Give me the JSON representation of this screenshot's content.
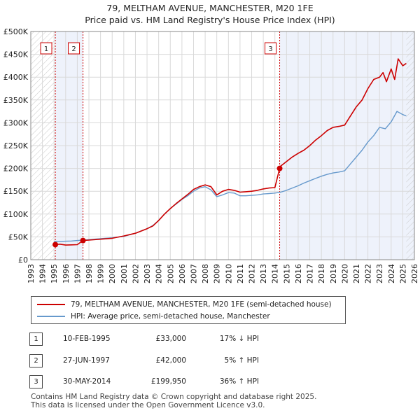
{
  "header": {
    "title_line1": "79, MELTHAM AVENUE, MANCHESTER, M20 1FE",
    "title_line2": "Price paid vs. HM Land Registry's House Price Index (HPI)"
  },
  "legend": {
    "property_label": "79, MELTHAM AVENUE, MANCHESTER, M20 1FE (semi-detached house)",
    "hpi_label": "HPI: Average price, semi-detached house, Manchester"
  },
  "sales": [
    {
      "num": "1",
      "date": "10-FEB-1995",
      "price": "£33,000",
      "hpi_change": "17% ↓ HPI"
    },
    {
      "num": "2",
      "date": "27-JUN-1997",
      "price": "£42,000",
      "hpi_change": "5% ↑ HPI"
    },
    {
      "num": "3",
      "date": "30-MAY-2014",
      "price": "£199,950",
      "hpi_change": "36% ↑ HPI"
    }
  ],
  "footer": {
    "line1": "Contains HM Land Registry data © Crown copyright and database right 2025.",
    "line2": "This data is licensed under the Open Government Licence v3.0."
  },
  "colors": {
    "property_line": "#cc0000",
    "hpi_line": "#6699cc",
    "shade": "#eef2fb",
    "grid": "#d9d9d9"
  },
  "chart_data": {
    "type": "line",
    "title": "Price paid vs. HM Land Registry's House Price Index (HPI)",
    "xlim": [
      1993,
      2026
    ],
    "ylim": [
      0,
      500000
    ],
    "x_ticks": [
      1993,
      1994,
      1995,
      1996,
      1997,
      1998,
      1999,
      2000,
      2001,
      2002,
      2003,
      2004,
      2005,
      2006,
      2007,
      2008,
      2009,
      2010,
      2011,
      2012,
      2013,
      2014,
      2015,
      2016,
      2017,
      2018,
      2019,
      2020,
      2021,
      2022,
      2023,
      2024,
      2025,
      2026
    ],
    "y_ticks": [
      0,
      50000,
      100000,
      150000,
      200000,
      250000,
      300000,
      350000,
      400000,
      450000,
      500000
    ],
    "y_tick_labels": [
      "£0",
      "£50K",
      "£100K",
      "£150K",
      "£200K",
      "£250K",
      "£300K",
      "£350K",
      "£400K",
      "£450K",
      "£500K"
    ],
    "sales": [
      {
        "label": "1",
        "x": 1995.11,
        "y": 33000
      },
      {
        "label": "2",
        "x": 1997.49,
        "y": 42000
      },
      {
        "label": "3",
        "x": 2014.41,
        "y": 199950
      }
    ],
    "series": [
      {
        "name": "79, MELTHAM AVENUE, MANCHESTER, M20 1FE (semi-detached house)",
        "x": [
          1995.11,
          1995.5,
          1996.0,
          1996.5,
          1997.0,
          1997.49,
          1997.5,
          1998,
          1999,
          2000,
          2001,
          2002,
          2003,
          2003.5,
          2004,
          2004.5,
          2005,
          2005.5,
          2006,
          2006.5,
          2007,
          2007.5,
          2008,
          2008.5,
          2009,
          2009.5,
          2010,
          2010.5,
          2011,
          2011.5,
          2012,
          2012.5,
          2013,
          2013.5,
          2014,
          2014.41,
          2014.5,
          2015,
          2015.5,
          2016,
          2016.5,
          2017,
          2017.5,
          2018,
          2018.5,
          2019,
          2019.5,
          2020,
          2020.5,
          2021,
          2021.5,
          2022,
          2022.5,
          2023,
          2023.3,
          2023.6,
          2024,
          2024.3,
          2024.6,
          2025,
          2025.3
        ],
        "values": [
          33000,
          34000,
          32000,
          32500,
          33000,
          42000,
          42000,
          43000,
          45000,
          47000,
          52000,
          58000,
          68000,
          74000,
          86000,
          100000,
          112000,
          123000,
          133000,
          143000,
          154000,
          160000,
          164000,
          160000,
          142000,
          150000,
          154000,
          152000,
          148000,
          149000,
          150000,
          152000,
          155000,
          157000,
          158000,
          199950,
          205000,
          215000,
          225000,
          233000,
          240000,
          250000,
          262000,
          272000,
          283000,
          290000,
          292000,
          295000,
          315000,
          335000,
          350000,
          375000,
          395000,
          400000,
          410000,
          390000,
          418000,
          395000,
          440000,
          425000,
          430000
        ]
      },
      {
        "name": "HPI: Average price, semi-detached house, Manchester",
        "x": [
          1995.0,
          1995.5,
          1996.0,
          1996.5,
          1997.0,
          1997.5,
          1998,
          1999,
          2000,
          2001,
          2002,
          2003,
          2003.5,
          2004,
          2004.5,
          2005,
          2005.5,
          2006,
          2006.5,
          2007,
          2007.5,
          2008,
          2008.5,
          2009,
          2009.5,
          2010,
          2010.5,
          2011,
          2011.5,
          2012,
          2012.5,
          2013,
          2013.5,
          2014,
          2014.5,
          2015,
          2015.5,
          2016,
          2016.5,
          2017,
          2017.5,
          2018,
          2018.5,
          2019,
          2019.5,
          2020,
          2020.5,
          2021,
          2021.5,
          2022,
          2022.5,
          2023,
          2023.5,
          2024,
          2024.5,
          2025,
          2025.3
        ],
        "values": [
          40000,
          40000,
          40500,
          41000,
          42000,
          43000,
          44000,
          46000,
          48000,
          51000,
          58000,
          68000,
          75000,
          86000,
          100000,
          112000,
          122000,
          132000,
          140000,
          150000,
          157000,
          160000,
          153000,
          138000,
          142000,
          147000,
          146000,
          140000,
          140000,
          141000,
          142000,
          144000,
          145000,
          146000,
          148000,
          152000,
          157000,
          162000,
          168000,
          173000,
          178000,
          183000,
          187000,
          190000,
          192000,
          195000,
          210000,
          225000,
          240000,
          258000,
          272000,
          290000,
          287000,
          302000,
          325000,
          318000,
          315000
        ]
      }
    ]
  }
}
